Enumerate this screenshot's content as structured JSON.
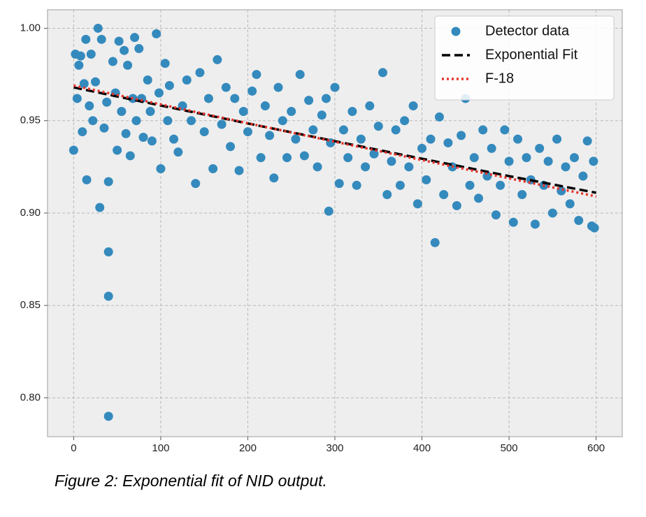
{
  "chart_data": {
    "type": "scatter",
    "caption": "Figure 2: Exponential fit of NID output.",
    "xlim": [
      -30,
      630
    ],
    "ylim": [
      0.779,
      1.01
    ],
    "xticks": [
      0,
      100,
      200,
      300,
      400,
      500,
      600
    ],
    "yticks": [
      {
        "value": 0.8,
        "label": "0.80"
      },
      0.85,
      {
        "value": 0.9,
        "label": "0.90"
      },
      0.95,
      {
        "value": 1.0,
        "label": "1.00"
      }
    ],
    "grid": true,
    "legend": "upper right",
    "series": [
      {
        "name": "Detector data",
        "style": "marker",
        "color": "#348abd",
        "x": [
          0,
          2,
          4,
          6,
          8,
          10,
          12,
          14,
          15,
          18,
          20,
          22,
          25,
          28,
          30,
          32,
          35,
          38,
          40,
          40,
          40,
          40,
          45,
          48,
          50,
          52,
          55,
          58,
          60,
          62,
          65,
          68,
          70,
          72,
          75,
          78,
          80,
          85,
          88,
          90,
          95,
          98,
          100,
          105,
          108,
          110,
          115,
          120,
          125,
          130,
          135,
          140,
          145,
          150,
          155,
          160,
          165,
          170,
          175,
          180,
          185,
          190,
          195,
          200,
          205,
          210,
          215,
          220,
          225,
          230,
          235,
          240,
          245,
          250,
          255,
          260,
          265,
          270,
          275,
          280,
          285,
          290,
          293,
          295,
          300,
          305,
          310,
          315,
          320,
          325,
          330,
          335,
          340,
          345,
          350,
          355,
          360,
          365,
          370,
          375,
          380,
          385,
          390,
          395,
          400,
          405,
          410,
          415,
          420,
          425,
          430,
          435,
          440,
          445,
          450,
          455,
          460,
          465,
          470,
          475,
          480,
          485,
          490,
          495,
          500,
          505,
          510,
          515,
          520,
          525,
          530,
          535,
          540,
          545,
          550,
          555,
          560,
          565,
          570,
          575,
          580,
          585,
          590,
          595,
          597,
          598
        ],
        "values": [
          0.934,
          0.986,
          0.962,
          0.98,
          0.985,
          0.944,
          0.97,
          0.994,
          0.918,
          0.958,
          0.986,
          0.95,
          0.971,
          1.0,
          0.903,
          0.994,
          0.946,
          0.96,
          0.79,
          0.855,
          0.879,
          0.917,
          0.982,
          0.965,
          0.934,
          0.993,
          0.955,
          0.988,
          0.943,
          0.98,
          0.931,
          0.962,
          0.995,
          0.95,
          0.989,
          0.962,
          0.941,
          0.972,
          0.955,
          0.939,
          0.997,
          0.965,
          0.924,
          0.981,
          0.95,
          0.969,
          0.94,
          0.933,
          0.958,
          0.972,
          0.95,
          0.916,
          0.976,
          0.944,
          0.962,
          0.924,
          0.983,
          0.948,
          0.968,
          0.936,
          0.962,
          0.923,
          0.955,
          0.944,
          0.966,
          0.975,
          0.93,
          0.958,
          0.942,
          0.919,
          0.968,
          0.95,
          0.93,
          0.955,
          0.94,
          0.975,
          0.931,
          0.961,
          0.945,
          0.925,
          0.953,
          0.962,
          0.901,
          0.938,
          0.968,
          0.916,
          0.945,
          0.93,
          0.955,
          0.915,
          0.94,
          0.925,
          0.958,
          0.932,
          0.947,
          0.976,
          0.91,
          0.928,
          0.945,
          0.915,
          0.95,
          0.925,
          0.958,
          0.905,
          0.935,
          0.918,
          0.94,
          0.884,
          0.952,
          0.91,
          0.938,
          0.925,
          0.904,
          0.942,
          0.962,
          0.915,
          0.93,
          0.908,
          0.945,
          0.92,
          0.935,
          0.899,
          0.915,
          0.945,
          0.928,
          0.895,
          0.94,
          0.91,
          0.93,
          0.918,
          0.894,
          0.935,
          0.915,
          0.928,
          0.9,
          0.94,
          0.912,
          0.925,
          0.905,
          0.93,
          0.896,
          0.92,
          0.939,
          0.893,
          0.928,
          0.892
        ]
      },
      {
        "name": "Exponential Fit",
        "style": "dashed",
        "color": "#000000",
        "x": [
          0,
          100,
          200,
          300,
          400,
          500,
          600
        ],
        "values": [
          0.968,
          0.9582,
          0.9485,
          0.9389,
          0.9294,
          0.92,
          0.911
        ]
      },
      {
        "name": "F-18",
        "style": "dotted",
        "color": "#e8322b",
        "x": [
          0,
          100,
          200,
          300,
          400,
          500,
          600
        ],
        "values": [
          0.969,
          0.9588,
          0.9486,
          0.9386,
          0.9287,
          0.9188,
          0.909
        ]
      }
    ]
  }
}
